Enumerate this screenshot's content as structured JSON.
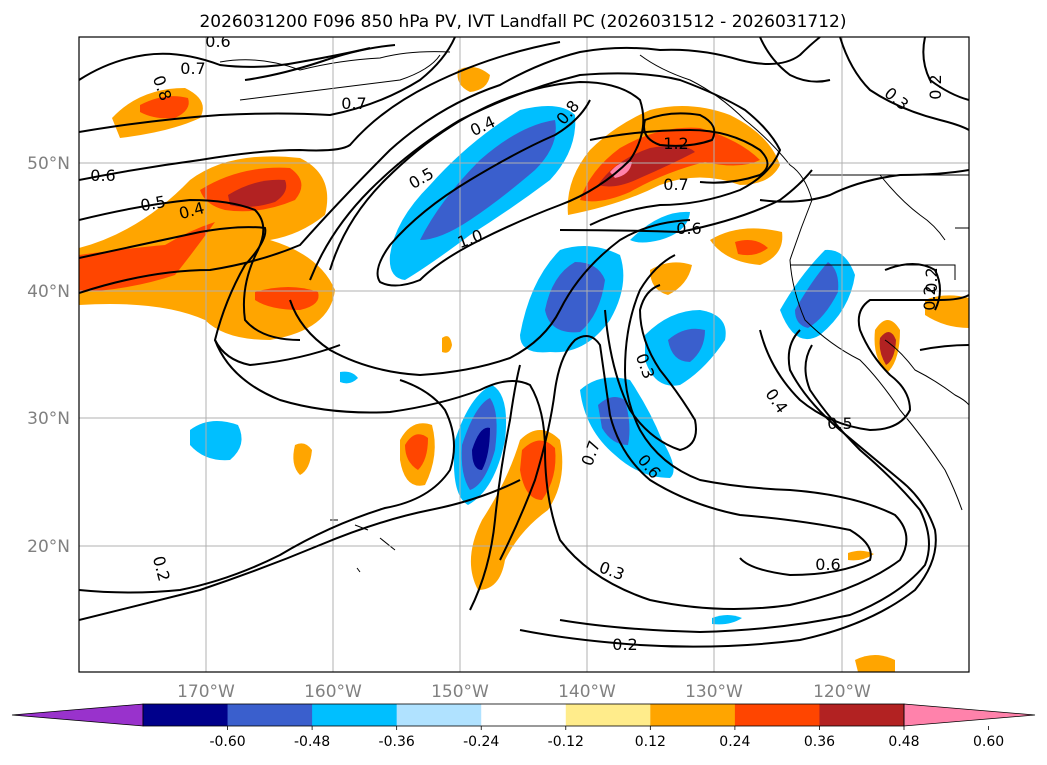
{
  "title": "2026031200 F096 850 hPa PV, IVT Landfall PC (2026031512 - 2026031712)",
  "lat_labels": [
    "50°N",
    "40°N",
    "30°N",
    "20°N"
  ],
  "lon_labels": [
    "170°W",
    "160°W",
    "150°W",
    "140°W",
    "130°W",
    "120°W"
  ],
  "colorbar": {
    "labels": [
      "-0.60",
      "-0.48",
      "-0.36",
      "-0.24",
      "-0.12",
      "0.12",
      "0.24",
      "0.36",
      "0.48",
      "0.60"
    ],
    "colors": [
      "#9932cc",
      "#00008b",
      "#3a5fcd",
      "#00bfff",
      "#b0e2ff",
      "#ffffff",
      "#ffec8b",
      "#ffa500",
      "#ff4500",
      "#b22222",
      "#ff82ab"
    ]
  },
  "contour_labels": [
    "0.6",
    "0.7",
    "0.8",
    "0.7",
    "0.6",
    "0.5",
    "0.4",
    "0.4",
    "0.5",
    "0.8",
    "1.2",
    "0.7",
    "0.6",
    "1.0",
    "0.3",
    "0.2",
    "0.2",
    "0.3",
    "0.2",
    "0.6",
    "0.3",
    "0.7",
    "0.6",
    "0.4",
    "0.5",
    "0.2",
    "0.2"
  ],
  "colors": {
    "frame": "#000000",
    "grid": "#b0b0b0",
    "contour": "#000000"
  }
}
